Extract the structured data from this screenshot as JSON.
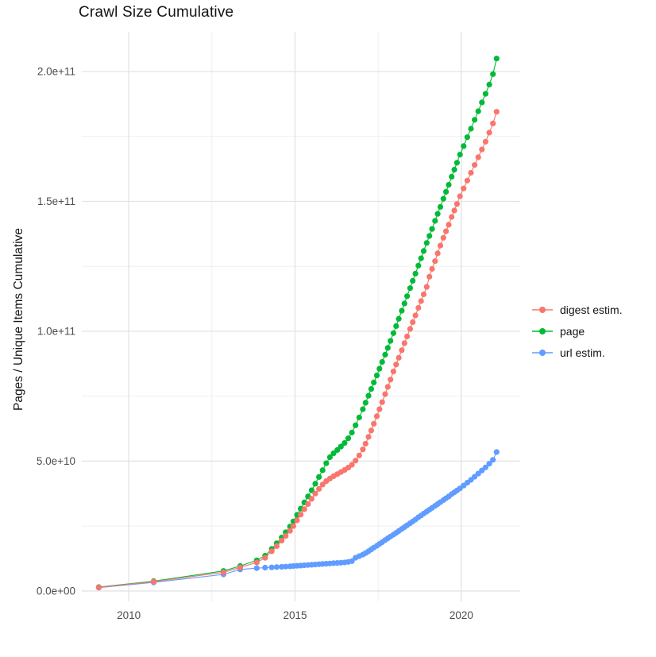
{
  "chart_data": {
    "type": "line",
    "title": "Crawl Size Cumulative",
    "xlabel": "",
    "ylabel": "Pages / Unique Items Cumulative",
    "legend_position": "right",
    "background": "#ffffff",
    "grid": true,
    "grid_major_color": "#e3e3e3",
    "grid_minor_color": "#efefef",
    "xlim": [
      2008.59,
      2021.77
    ],
    "ylim": [
      -4000000000.0,
      215300000000.0
    ],
    "x_ticks": {
      "values": [
        2010,
        2015,
        2020
      ],
      "labels": [
        "2010",
        "2015",
        "2020"
      ]
    },
    "x_minor_ticks": [
      2012.5,
      2017.5
    ],
    "y_ticks": {
      "values": [
        0,
        50000000000.0,
        100000000000.0,
        150000000000.0,
        200000000000.0
      ],
      "labels": [
        "0.0e+00",
        "5.0e+10",
        "1.0e+11",
        "1.5e+11",
        "2.0e+11"
      ]
    },
    "y_minor_ticks": [
      25000000000.0,
      75000000000.0,
      125000000000.0,
      175000000000.0
    ],
    "y_unit": 1000000000.0,
    "x": [
      2009.1,
      2010.75,
      2012.85,
      2013.35,
      2013.85,
      2014.1,
      2014.3,
      2014.45,
      2014.6,
      2014.72,
      2014.85,
      2014.95,
      2015.06,
      2015.17,
      2015.28,
      2015.39,
      2015.5,
      2015.61,
      2015.72,
      2015.83,
      2015.94,
      2016.05,
      2016.16,
      2016.27,
      2016.38,
      2016.49,
      2016.6,
      2016.71,
      2016.82,
      2016.93,
      2017.04,
      2017.12,
      2017.21,
      2017.29,
      2017.37,
      2017.46,
      2017.54,
      2017.62,
      2017.71,
      2017.79,
      2017.87,
      2017.96,
      2018.04,
      2018.12,
      2018.21,
      2018.29,
      2018.37,
      2018.46,
      2018.54,
      2018.62,
      2018.71,
      2018.79,
      2018.87,
      2018.96,
      2019.04,
      2019.12,
      2019.21,
      2019.29,
      2019.37,
      2019.46,
      2019.54,
      2019.62,
      2019.71,
      2019.79,
      2019.87,
      2019.96,
      2020.07,
      2020.18,
      2020.29,
      2020.4,
      2020.51,
      2020.62,
      2020.73,
      2020.84,
      2020.95,
      2021.06
    ],
    "series": [
      {
        "name": "digest estim.",
        "color": "#F8766D",
        "values": [
          1.4,
          3.6,
          7.2,
          9.1,
          11,
          12.8,
          15.3,
          17.3,
          19.4,
          21.2,
          23.2,
          25,
          27.2,
          29.4,
          31.5,
          33.5,
          35.5,
          37.5,
          39.3,
          41,
          42.3,
          43.3,
          44.2,
          45,
          45.8,
          46.6,
          47.5,
          48.6,
          50.2,
          52.2,
          54.5,
          56.7,
          59.3,
          61.8,
          64.4,
          67.3,
          70,
          72.7,
          75.8,
          78.6,
          81.4,
          84.5,
          87.2,
          89.8,
          92.7,
          95.4,
          98,
          100.9,
          103.5,
          106.1,
          109,
          111.6,
          114.2,
          117.1,
          121,
          124,
          127,
          130,
          133,
          136,
          138.5,
          141,
          144,
          146.5,
          149,
          152,
          155,
          158,
          161,
          164,
          167,
          170,
          173,
          176.5,
          180,
          184.5
        ]
      },
      {
        "name": "page",
        "color": "#00BA38",
        "values": [
          1.5,
          3.8,
          7.7,
          9.6,
          11.8,
          13.6,
          16.2,
          18.4,
          20.6,
          22.6,
          24.8,
          26.8,
          29.3,
          31.7,
          34.1,
          36.4,
          38.8,
          41.3,
          43.9,
          46.5,
          49.2,
          51.5,
          53,
          54.3,
          55.6,
          57,
          58.8,
          61,
          63.8,
          66.8,
          70,
          72.5,
          75.2,
          77.8,
          80.3,
          83,
          85.6,
          88.2,
          91,
          93.6,
          96.3,
          99.3,
          102,
          104.8,
          107.9,
          110.7,
          113.5,
          116.6,
          119.4,
          122.2,
          125.3,
          128.1,
          130.9,
          134,
          136.7,
          139.4,
          142.5,
          145.2,
          147.9,
          151,
          153.7,
          156.4,
          159.5,
          162.2,
          164.9,
          168,
          171.3,
          174.7,
          178,
          181.4,
          184.7,
          188.1,
          191.4,
          195,
          199,
          205
        ]
      },
      {
        "name": "url estim.",
        "color": "#619CFF",
        "values": [
          1.3,
          3.3,
          6.4,
          8.3,
          8.8,
          9,
          9.1,
          9.2,
          9.3,
          9.4,
          9.5,
          9.6,
          9.7,
          9.8,
          9.9,
          10,
          10.1,
          10.2,
          10.3,
          10.4,
          10.5,
          10.6,
          10.7,
          10.8,
          10.9,
          11,
          11.2,
          11.5,
          12.8,
          13.4,
          14,
          14.6,
          15.3,
          16,
          16.7,
          17.4,
          18.1,
          18.8,
          19.6,
          20.3,
          21,
          21.7,
          22.4,
          23.1,
          23.9,
          24.6,
          25.3,
          26.1,
          26.8,
          27.5,
          28.4,
          29.1,
          29.8,
          30.6,
          31.3,
          32,
          32.8,
          33.5,
          34.2,
          35,
          35.7,
          36.4,
          37.3,
          38,
          38.7,
          39.5,
          40.6,
          41.7,
          42.8,
          44,
          45.2,
          46.4,
          47.6,
          49,
          50.5,
          53.5
        ]
      }
    ],
    "draw_order": [
      1,
      2,
      0
    ]
  }
}
